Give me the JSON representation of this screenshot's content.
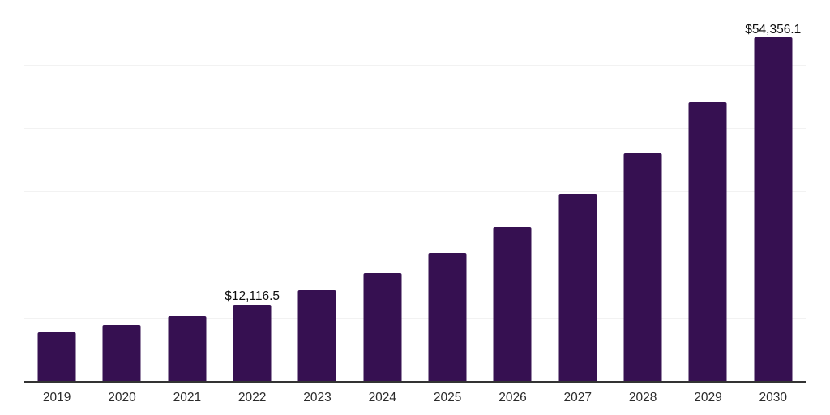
{
  "chart_data": {
    "type": "bar",
    "title": "",
    "xlabel": "",
    "ylabel": "",
    "categories": [
      "2019",
      "2020",
      "2021",
      "2022",
      "2023",
      "2024",
      "2025",
      "2026",
      "2027",
      "2028",
      "2029",
      "2030"
    ],
    "values": [
      7700,
      8800,
      10300,
      12116.5,
      14300,
      17000,
      20200,
      24400,
      29600,
      36000,
      44100,
      54356.1
    ],
    "value_labels": [
      "",
      "",
      "",
      "$12,116.5",
      "",
      "",
      "",
      "",
      "",
      "",
      "",
      "$54,356.1"
    ],
    "ylim": [
      0,
      60000
    ],
    "gridline_step": 10000,
    "grid": true,
    "legend": false,
    "colors": {
      "bar": "#361051",
      "axis": "#333333",
      "gridline": "#f2f2f2",
      "value_label": "#0d0d0d",
      "tick_label": "#2b2b2b"
    }
  }
}
